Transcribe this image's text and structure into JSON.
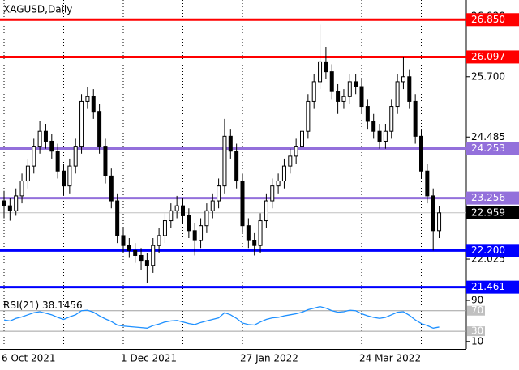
{
  "chart_data": {
    "type": "candlestick",
    "title": "XAGUSD,Daily",
    "categories": [
      "6 Oct 2021",
      null,
      null,
      null,
      null,
      null,
      null,
      null,
      null,
      null,
      null,
      null,
      null,
      null,
      null,
      null,
      null,
      null,
      null,
      null,
      "1 Dec 2021",
      null,
      null,
      null,
      null,
      null,
      null,
      null,
      null,
      null,
      null,
      null,
      null,
      null,
      null,
      null,
      null,
      null,
      null,
      null,
      "27 Jan 2022",
      null,
      null,
      null,
      null,
      null,
      null,
      null,
      null,
      null,
      null,
      null,
      null,
      null,
      null,
      null,
      null,
      null,
      null,
      null,
      "24 Mar 2022",
      null,
      null,
      null,
      null,
      null,
      null,
      null,
      null,
      null,
      null,
      null,
      null,
      null
    ],
    "open": [
      23.2,
      23.1,
      23.0,
      23.3,
      23.6,
      23.9,
      24.3,
      24.6,
      24.4,
      24.2,
      23.8,
      23.5,
      23.9,
      24.3,
      25.2,
      25.3,
      25.0,
      24.3,
      23.7,
      23.2,
      22.5,
      22.3,
      22.2,
      22.1,
      22.0,
      21.9,
      22.3,
      22.5,
      22.8,
      23.0,
      23.1,
      22.9,
      22.6,
      22.4,
      22.7,
      23.0,
      23.2,
      23.5,
      24.5,
      24.2,
      23.6,
      22.7,
      22.4,
      22.3,
      22.8,
      23.2,
      23.5,
      23.6,
      23.9,
      24.1,
      24.3,
      24.6,
      25.2,
      25.6,
      26.0,
      25.8,
      25.4,
      25.2,
      25.3,
      25.6,
      25.5,
      25.1,
      24.8,
      24.6,
      24.4,
      24.6,
      25.1,
      25.6,
      25.7,
      25.2,
      24.5,
      23.8,
      23.3,
      22.6
    ],
    "high": [
      23.4,
      23.25,
      23.45,
      23.75,
      24.05,
      24.45,
      24.8,
      24.75,
      24.55,
      24.35,
      23.95,
      24.05,
      24.45,
      25.35,
      25.5,
      25.45,
      25.15,
      24.45,
      23.85,
      23.35,
      22.65,
      22.45,
      22.35,
      22.25,
      22.15,
      22.45,
      22.65,
      22.95,
      23.15,
      23.3,
      23.25,
      23.05,
      22.75,
      22.85,
      23.15,
      23.35,
      23.65,
      24.85,
      24.65,
      24.35,
      23.75,
      22.85,
      22.55,
      22.95,
      23.35,
      23.65,
      23.75,
      24.05,
      24.25,
      24.45,
      24.75,
      25.35,
      25.75,
      26.75,
      26.3,
      25.95,
      25.55,
      25.45,
      25.75,
      25.75,
      25.65,
      25.25,
      24.95,
      24.75,
      24.75,
      25.25,
      25.75,
      26.1,
      25.85,
      25.35,
      24.65,
      23.95,
      23.45,
      23.1
    ],
    "low": [
      22.85,
      22.8,
      22.9,
      23.15,
      23.45,
      23.75,
      24.15,
      24.25,
      24.05,
      23.65,
      23.3,
      23.35,
      23.75,
      24.15,
      25.05,
      24.85,
      24.15,
      23.55,
      23.05,
      22.35,
      22.15,
      22.05,
      21.95,
      21.8,
      21.55,
      21.75,
      22.15,
      22.35,
      22.65,
      22.85,
      22.75,
      22.45,
      22.1,
      22.25,
      22.55,
      22.85,
      23.05,
      23.35,
      24.05,
      23.45,
      22.55,
      22.25,
      22.1,
      22.15,
      22.65,
      23.05,
      23.35,
      23.45,
      23.75,
      23.95,
      24.15,
      24.45,
      25.05,
      25.45,
      25.65,
      25.25,
      24.95,
      25.05,
      25.15,
      25.35,
      24.95,
      24.65,
      24.45,
      24.25,
      24.25,
      24.45,
      24.95,
      25.45,
      25.05,
      24.35,
      23.65,
      23.15,
      22.2,
      22.45
    ],
    "close": [
      23.1,
      23.0,
      23.3,
      23.6,
      23.9,
      24.3,
      24.6,
      24.4,
      24.2,
      23.8,
      23.5,
      23.9,
      24.3,
      25.2,
      25.3,
      25.0,
      24.3,
      23.7,
      23.2,
      22.5,
      22.3,
      22.2,
      22.1,
      22.0,
      21.9,
      22.3,
      22.5,
      22.8,
      23.0,
      23.1,
      22.9,
      22.6,
      22.4,
      22.7,
      23.0,
      23.2,
      23.5,
      24.5,
      24.2,
      23.6,
      22.7,
      22.4,
      22.3,
      22.8,
      23.2,
      23.5,
      23.6,
      23.9,
      24.1,
      24.3,
      24.6,
      25.2,
      25.6,
      26.0,
      25.8,
      25.4,
      25.2,
      25.3,
      25.6,
      25.5,
      25.1,
      24.8,
      24.6,
      24.4,
      24.6,
      25.1,
      25.6,
      25.7,
      25.2,
      24.5,
      23.8,
      23.3,
      22.6,
      22.959
    ],
    "ylim": [
      21.292,
      27.246
    ],
    "yticks": [
      {
        "value": 26.92,
        "label": "26.920"
      },
      {
        "value": 25.7,
        "label": "25.700"
      },
      {
        "value": 24.485,
        "label": "24.485"
      },
      {
        "value": 22.025,
        "label": "22.025"
      }
    ],
    "levels": [
      {
        "value": 26.85,
        "label": "26.850",
        "color": "#ff0000"
      },
      {
        "value": 26.097,
        "label": "26.097",
        "color": "#ff0000"
      },
      {
        "value": 24.253,
        "label": "24.253",
        "color": "#9370db"
      },
      {
        "value": 23.256,
        "label": "23.256",
        "color": "#9370db"
      },
      {
        "value": 22.2,
        "label": "22.200",
        "color": "#0000ff"
      },
      {
        "value": 21.461,
        "label": "21.461",
        "color": "#0000ff"
      }
    ],
    "current_price": 22.959,
    "rsi": {
      "name": "RSI(21)",
      "color": "#1e90ff",
      "ylim": [
        -3,
        98
      ],
      "yticks": [
        90,
        70,
        30,
        10
      ],
      "values": [
        52,
        50,
        55,
        58,
        62,
        66,
        68,
        65,
        62,
        57,
        53,
        58,
        62,
        70,
        71,
        67,
        60,
        54,
        49,
        42,
        40,
        39,
        38,
        37,
        36,
        41,
        44,
        48,
        50,
        51,
        48,
        45,
        43,
        47,
        50,
        53,
        56,
        66,
        62,
        55,
        46,
        43,
        42,
        48,
        53,
        56,
        57,
        60,
        62,
        64,
        67,
        72,
        75,
        78,
        75,
        70,
        67,
        68,
        71,
        70,
        64,
        60,
        57,
        55,
        57,
        62,
        67,
        68,
        61,
        52,
        45,
        41,
        36,
        38.1456
      ]
    }
  }
}
